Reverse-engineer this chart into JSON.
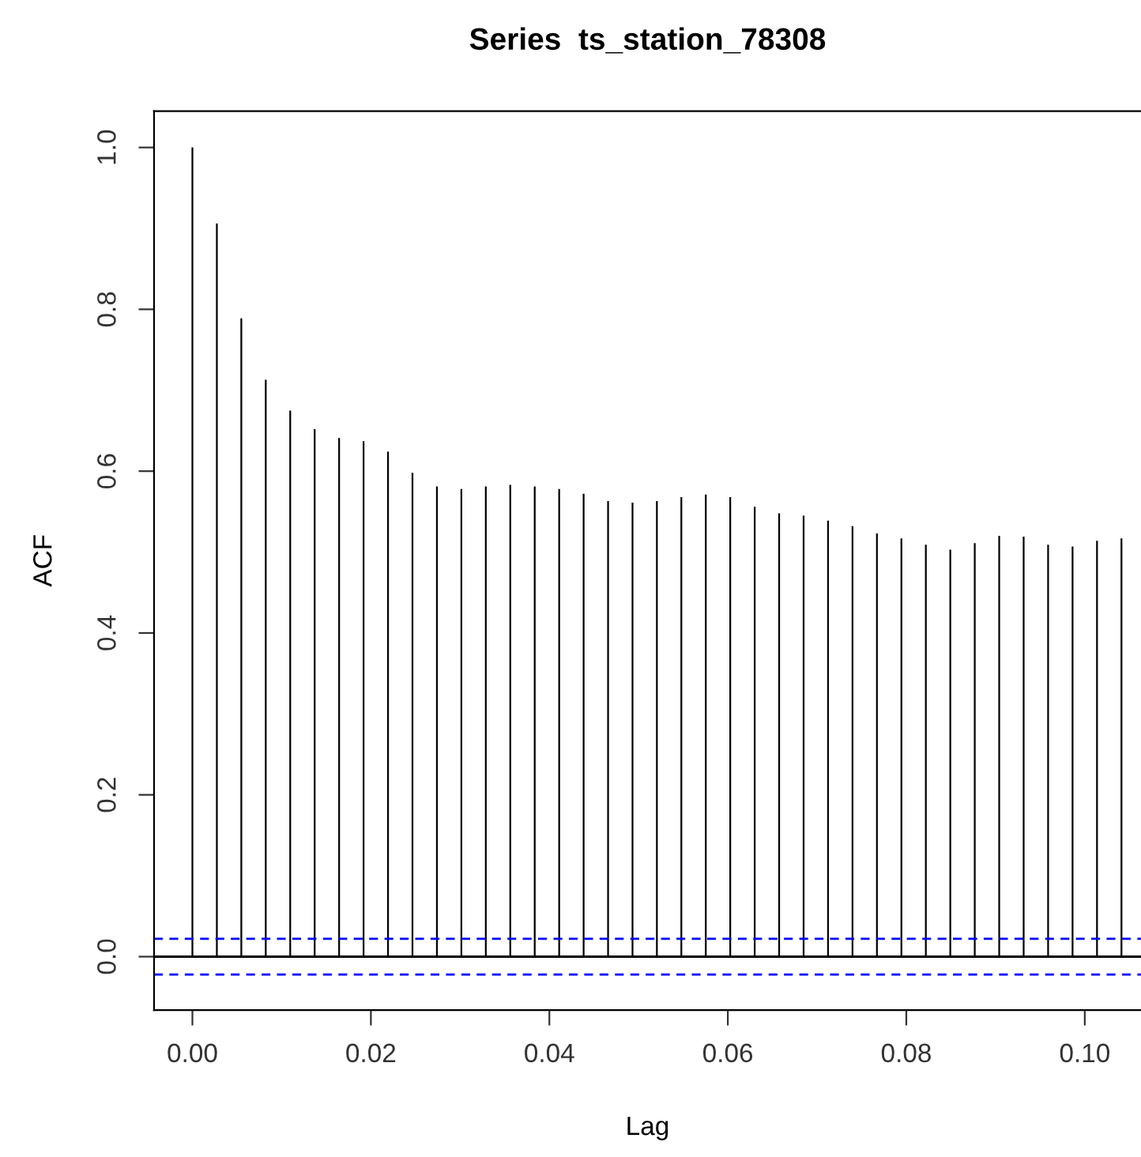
{
  "chart_data": {
    "type": "bar",
    "title": "Series  ts_station_78308",
    "xlabel": "Lag",
    "ylabel": "ACF",
    "x": [
      0,
      0.00274,
      0.00548,
      0.00822,
      0.01096,
      0.0137,
      0.01644,
      0.01918,
      0.02192,
      0.02466,
      0.0274,
      0.03014,
      0.03288,
      0.03562,
      0.03836,
      0.0411,
      0.04384,
      0.04658,
      0.04932,
      0.05205,
      0.05479,
      0.05753,
      0.06027,
      0.06301,
      0.06575,
      0.06849,
      0.07123,
      0.07397,
      0.07671,
      0.07945,
      0.08219,
      0.08493,
      0.08767,
      0.09041,
      0.09315,
      0.09589,
      0.09863,
      0.10137,
      0.10411
    ],
    "values": [
      1.0,
      0.906,
      0.789,
      0.713,
      0.675,
      0.652,
      0.641,
      0.637,
      0.624,
      0.598,
      0.581,
      0.578,
      0.581,
      0.583,
      0.581,
      0.578,
      0.572,
      0.563,
      0.561,
      0.563,
      0.568,
      0.571,
      0.568,
      0.556,
      0.548,
      0.545,
      0.539,
      0.532,
      0.523,
      0.517,
      0.509,
      0.503,
      0.511,
      0.52,
      0.519,
      0.509,
      0.507,
      0.514,
      0.517
    ],
    "color": "#000000",
    "xlim": [
      -0.0043,
      0.1063
    ],
    "ylim": [
      -0.066,
      1.045
    ],
    "xticks": [
      {
        "value": 0,
        "label": "0.00"
      },
      0.02,
      0.04,
      0.06,
      0.08,
      {
        "value": 0.1,
        "label": "0.10"
      }
    ],
    "yticks": [
      {
        "value": 0,
        "label": "0.0"
      },
      0.2,
      0.4,
      0.6,
      0.8,
      {
        "value": 1,
        "label": "1.0"
      }
    ],
    "ref_lines": [
      {
        "axis": "y",
        "value": 0,
        "color": "#000000",
        "line_style": "solid"
      },
      {
        "axis": "y",
        "value": 0.022,
        "color": "#0000ff",
        "line_style": "dashed"
      },
      {
        "axis": "y",
        "value": -0.022,
        "color": "#0000ff",
        "line_style": "dashed"
      }
    ],
    "grid": false
  }
}
